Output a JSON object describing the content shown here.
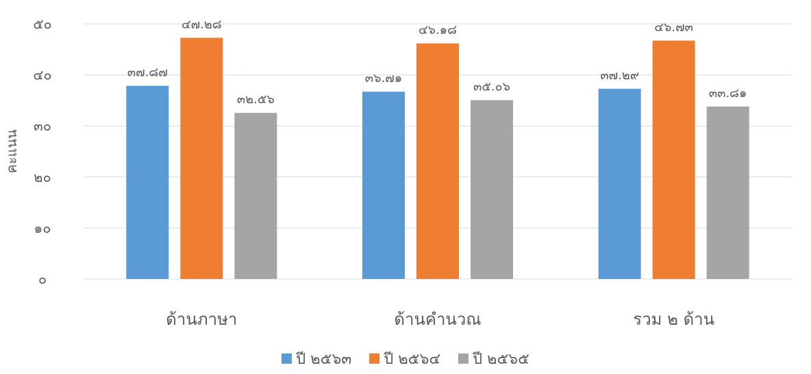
{
  "chart_data": {
    "type": "bar",
    "title": "",
    "xlabel": "",
    "ylabel": "คะแนน",
    "ylim": [
      0,
      50
    ],
    "yticks": [
      0,
      10,
      20,
      30,
      40,
      50
    ],
    "ytick_labels": [
      "๐",
      "๑๐",
      "๒๐",
      "๓๐",
      "๔๐",
      "๕๐"
    ],
    "grid": true,
    "legend_position": "bottom",
    "categories": [
      "ด้านภาษา",
      "ด้านคำนวณ",
      "รวม ๒ ด้าน"
    ],
    "series": [
      {
        "name": "ปี ๒๕๖๓",
        "color": "#5B9BD5",
        "values": [
          37.87,
          36.71,
          37.29
        ],
        "labels": [
          "๓๗.๘๗",
          "๓๖.๗๑",
          "๓๗.๒๙"
        ]
      },
      {
        "name": "ปี ๒๕๖๔",
        "color": "#ED7D31",
        "values": [
          47.28,
          46.18,
          46.73
        ],
        "labels": [
          "๔๗.๒๘",
          "๔๖.๑๘",
          "๔๖.๗๓"
        ]
      },
      {
        "name": "ปี ๒๕๖๕",
        "color": "#A5A5A5",
        "values": [
          32.56,
          35.06,
          33.81
        ],
        "labels": [
          "๓๒.๕๖",
          "๓๕.๐๖",
          "๓๓.๘๑"
        ]
      }
    ]
  }
}
